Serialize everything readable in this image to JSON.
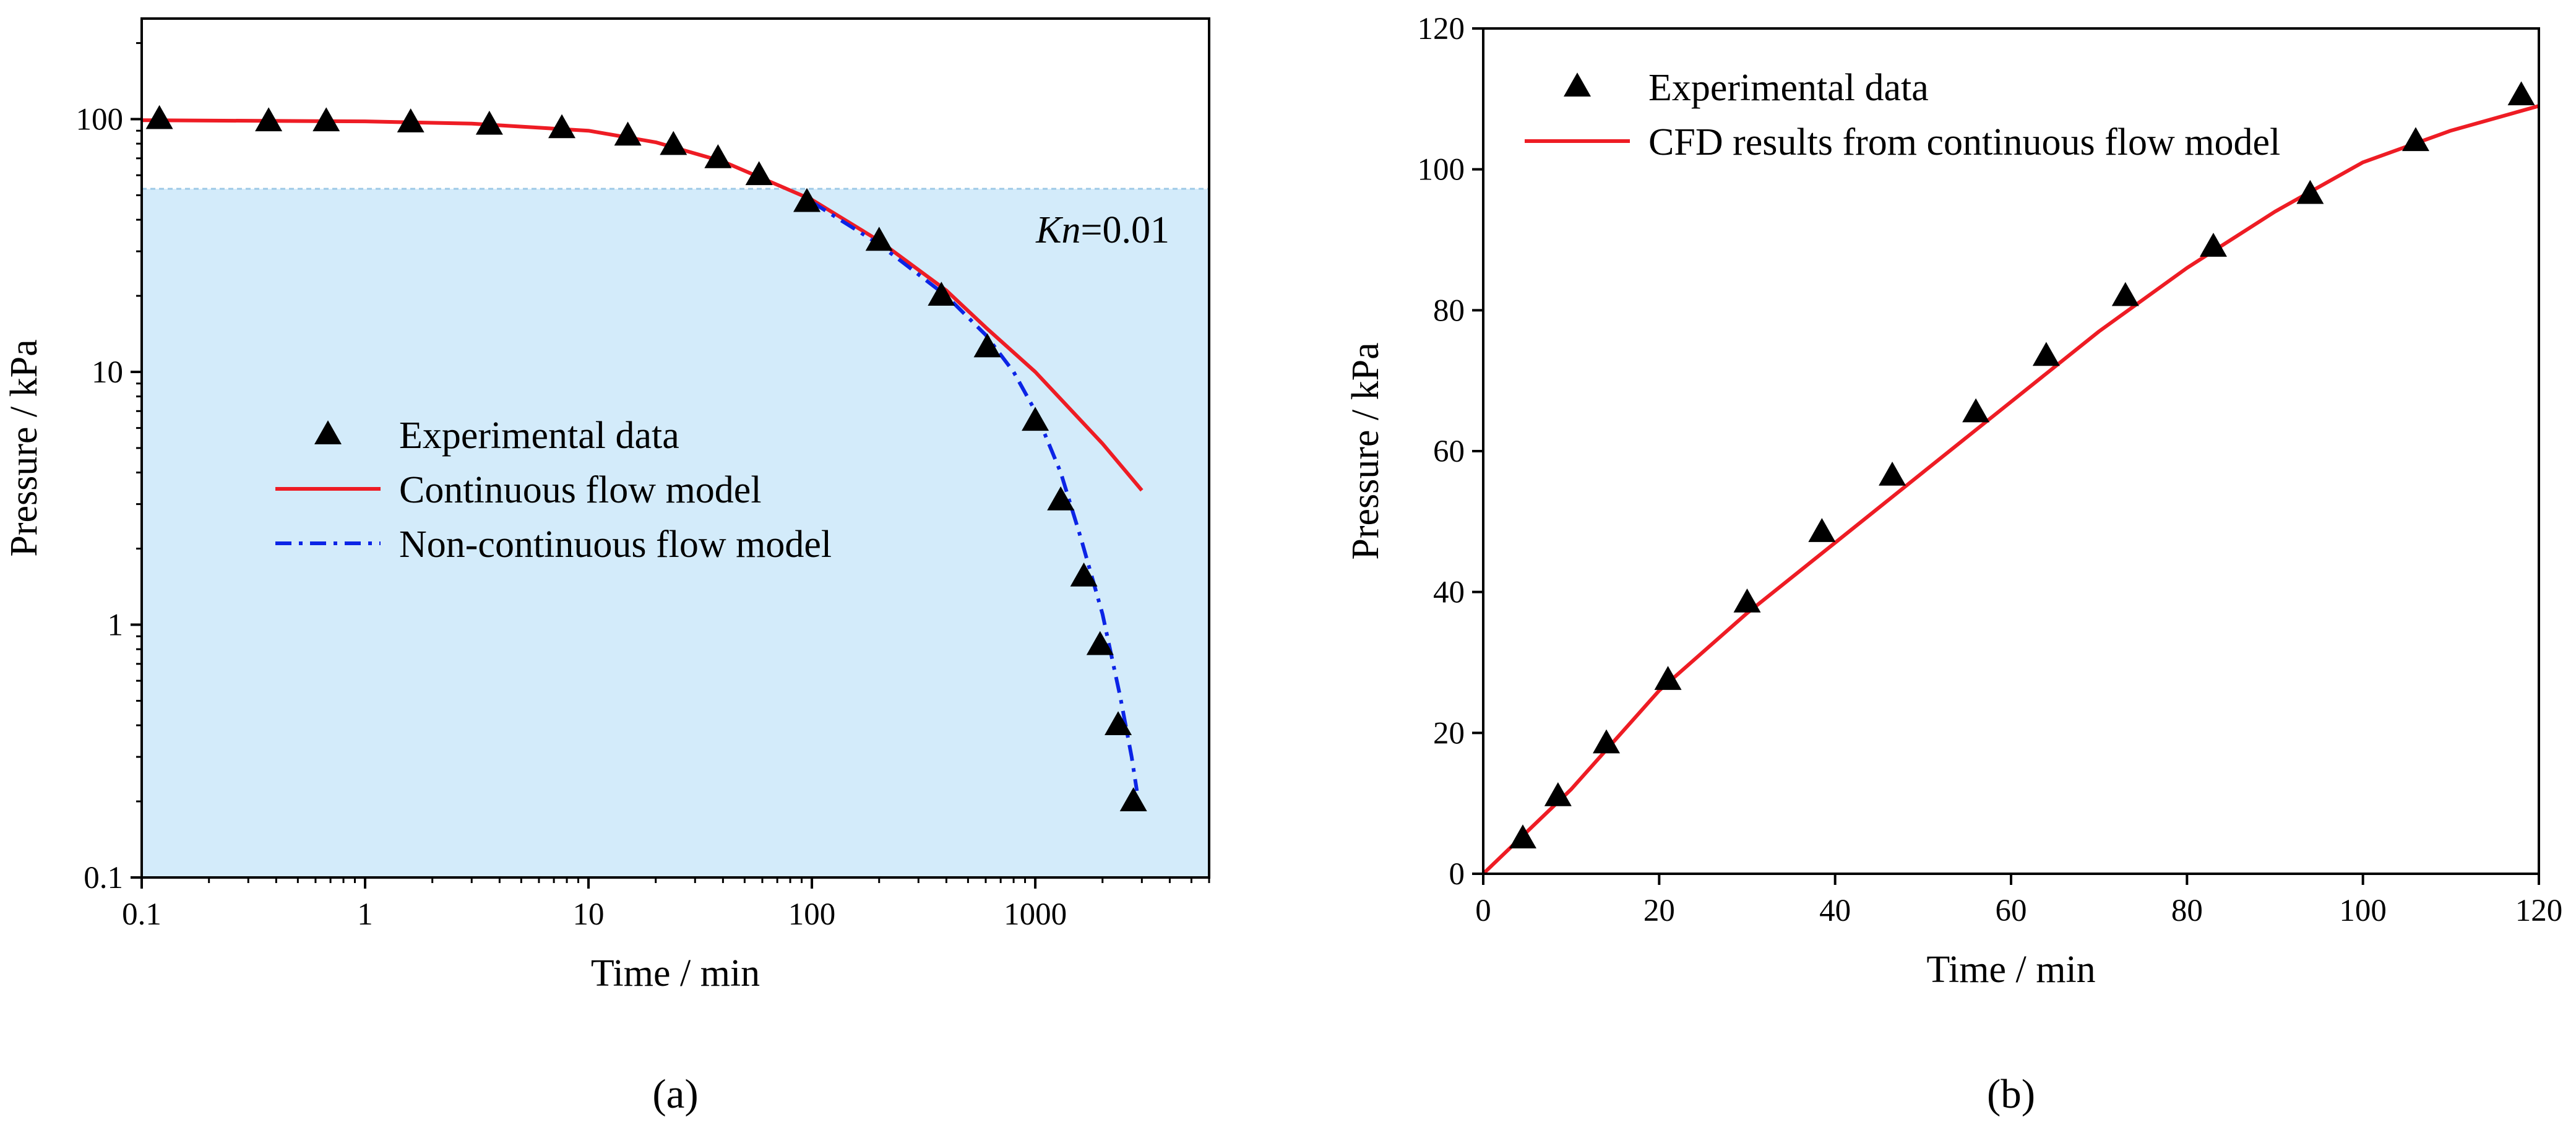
{
  "chart_data": [
    {
      "type": "scatter",
      "panel_label": "(a)",
      "xlabel": "Time / min",
      "ylabel": "Pressure / kPa",
      "xscale": "log",
      "yscale": "log",
      "xlim": [
        0.1,
        6000
      ],
      "ylim": [
        0.1,
        250
      ],
      "xticks": [
        {
          "value": 0.1,
          "label": "0.1"
        },
        {
          "value": 1,
          "label": "1"
        },
        {
          "value": 10,
          "label": "10"
        },
        {
          "value": 100,
          "label": "100"
        },
        {
          "value": 1000,
          "label": "1000"
        }
      ],
      "yticks": [
        {
          "value": 0.1,
          "label": "0.1"
        },
        {
          "value": 1,
          "label": "1"
        },
        {
          "value": 10,
          "label": "10"
        },
        {
          "value": 100,
          "label": "100"
        }
      ],
      "shaded_region": {
        "y_min": 0.1,
        "y_max": 53,
        "color": "#d3ebfa",
        "edge_color": "#9ec9e6"
      },
      "annotation": {
        "italic": "Kn",
        "rest": "=0.01"
      },
      "series": [
        {
          "name": "Experimental data",
          "kind": "markers",
          "marker": "triangle",
          "color": "#000000",
          "x": [
            0.12,
            0.37,
            0.67,
            1.6,
            3.6,
            7.6,
            15,
            24,
            38,
            58,
            95,
            200,
            380,
            610,
            1000,
            1300,
            1650,
            1950,
            2350,
            2750
          ],
          "y": [
            100,
            98,
            98,
            97,
            95,
            92,
            86,
            79,
            70,
            60,
            47,
            33,
            20,
            12.5,
            6.4,
            3.1,
            1.55,
            0.83,
            0.4,
            0.2
          ]
        },
        {
          "name": "Continuous flow model",
          "kind": "line",
          "style": "solid",
          "color": "#ee1c24",
          "x": [
            0.1,
            1,
            3,
            10,
            20,
            40,
            70,
            100,
            200,
            400,
            600,
            1000,
            2000,
            3000
          ],
          "y": [
            99,
            98,
            96,
            90,
            81,
            68,
            55,
            48,
            33,
            21,
            15,
            10,
            5.2,
            3.4
          ]
        },
        {
          "name": "Non-continuous flow model",
          "kind": "line",
          "style": "dashdot",
          "color": "#0b24e6",
          "x": [
            100,
            200,
            400,
            600,
            800,
            1000,
            1300,
            1600,
            2000,
            2400,
            2700,
            2850
          ],
          "y": [
            47,
            32,
            20,
            14,
            10,
            7,
            4,
            2.2,
            1.1,
            0.52,
            0.3,
            0.22
          ]
        }
      ],
      "legend": [
        {
          "label": "Experimental data",
          "kind": "marker"
        },
        {
          "label": "Continuous flow model",
          "kind": "solid"
        },
        {
          "label": "Non-continuous flow model",
          "kind": "dashdot"
        }
      ]
    },
    {
      "type": "scatter",
      "panel_label": "(b)",
      "xlabel": "Time / min",
      "ylabel": "Pressure / kPa",
      "xscale": "linear",
      "yscale": "linear",
      "xlim": [
        0,
        120
      ],
      "ylim": [
        0,
        120
      ],
      "xticks": [
        {
          "value": 0,
          "label": "0"
        },
        {
          "value": 20,
          "label": "20"
        },
        {
          "value": 40,
          "label": "40"
        },
        {
          "value": 60,
          "label": "60"
        },
        {
          "value": 80,
          "label": "80"
        },
        {
          "value": 100,
          "label": "100"
        },
        {
          "value": 120,
          "label": "120"
        }
      ],
      "yticks": [
        {
          "value": 0,
          "label": "0"
        },
        {
          "value": 20,
          "label": "20"
        },
        {
          "value": 40,
          "label": "40"
        },
        {
          "value": 60,
          "label": "60"
        },
        {
          "value": 80,
          "label": "80"
        },
        {
          "value": 100,
          "label": "100"
        },
        {
          "value": 120,
          "label": "120"
        }
      ],
      "series": [
        {
          "name": "Experimental data",
          "kind": "markers",
          "marker": "triangle",
          "color": "#000000",
          "x": [
            4.5,
            8.5,
            14,
            21,
            30,
            38.5,
            46.5,
            56,
            64,
            73,
            83,
            94,
            106,
            118
          ],
          "y": [
            5,
            11,
            18.5,
            27.5,
            38.5,
            48.5,
            56.5,
            65.5,
            73.5,
            82,
            89,
            96.5,
            104,
            110.5
          ]
        },
        {
          "name": "CFD results from continuous flow model",
          "kind": "line",
          "style": "solid",
          "color": "#ee1c24",
          "x": [
            0,
            5,
            10,
            20,
            30,
            40,
            50,
            60,
            70,
            80,
            90,
            100,
            110,
            120
          ],
          "y": [
            0,
            6,
            12,
            26,
            37,
            47,
            57,
            67,
            77,
            86,
            94,
            101,
            105.5,
            109
          ]
        }
      ],
      "legend": [
        {
          "label": "Experimental data",
          "kind": "marker"
        },
        {
          "label": "CFD results from continuous flow model",
          "kind": "solid"
        }
      ]
    }
  ]
}
